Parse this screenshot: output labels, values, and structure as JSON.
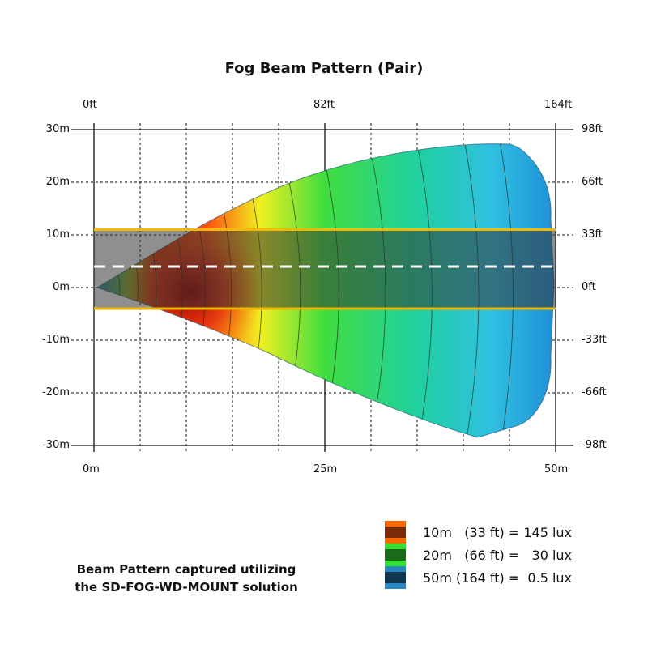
{
  "chart_data": {
    "type": "heatmap",
    "title": "Fog Beam Pattern (Pair)",
    "x_axis_bottom": {
      "unit": "m",
      "range": [
        0,
        50
      ],
      "tick_labels": [
        "0m",
        "25m",
        "50m"
      ]
    },
    "x_axis_top": {
      "unit": "ft",
      "range": [
        0,
        164
      ],
      "tick_labels": [
        "0ft",
        "82ft",
        "164ft"
      ]
    },
    "y_axis_left": {
      "unit": "m",
      "range": [
        -30,
        30
      ],
      "tick_labels": [
        "30m",
        "20m",
        "10m",
        "0m",
        "-10m",
        "-20m",
        "-30m"
      ]
    },
    "y_axis_right": {
      "unit": "ft",
      "range": [
        -98,
        98
      ],
      "tick_labels": [
        "98ft",
        "66ft",
        "33ft",
        "0ft",
        "-33ft",
        "-66ft",
        "-98ft"
      ]
    },
    "grid": true,
    "road_band_m": [
      -4,
      11
    ],
    "centerline_m": 4,
    "legend": [
      {
        "label": "10m   (33 ft) = 145 lux",
        "color": "#ff6a00",
        "distance_m": 10,
        "lux": 145
      },
      {
        "label": "20m   (66 ft) =   30 lux",
        "color": "#33e033",
        "distance_m": 20,
        "lux": 30
      },
      {
        "label": "50m (164 ft) =  0.5 lux",
        "color": "#2a86c0",
        "distance_m": 50,
        "lux": 0.5
      }
    ],
    "legend_placement": "bottom-right"
  },
  "note": {
    "line1": "Beam Pattern captured utilizing",
    "line2": "the SD-FOG-WD-MOUNT solution"
  },
  "colors": {
    "band": "#f5b800",
    "hot": "#8b0000",
    "cool": "#1f8fd8"
  }
}
